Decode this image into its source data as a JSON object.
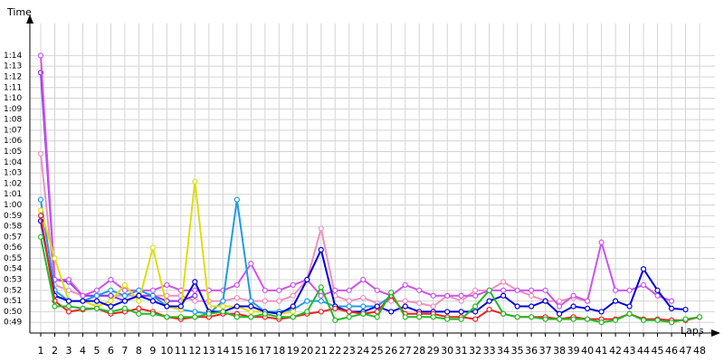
{
  "chart_data": {
    "type": "line",
    "y_label": "Time",
    "x_label": "Laps",
    "grid": true,
    "categories": [
      "1",
      "2",
      "3",
      "4",
      "5",
      "6",
      "7",
      "8",
      "9",
      "10",
      "11",
      "12",
      "13",
      "14",
      "15",
      "16",
      "17",
      "18",
      "19",
      "20",
      "21",
      "22",
      "23",
      "24",
      "25",
      "26",
      "27",
      "28",
      "29",
      "30",
      "31",
      "32",
      "33",
      "34",
      "35",
      "36",
      "37",
      "38",
      "39",
      "40",
      "41",
      "42",
      "43",
      "44",
      "45",
      "46",
      "47",
      "48"
    ],
    "ylim": [
      48,
      77
    ],
    "yticks": [
      {
        "value": 49,
        "label": "0:49"
      },
      {
        "value": 50,
        "label": "0:50"
      },
      {
        "value": 51,
        "label": "0:51"
      },
      {
        "value": 52,
        "label": "0:52"
      },
      {
        "value": 53,
        "label": "0:53"
      },
      {
        "value": 54,
        "label": "0:54"
      },
      {
        "value": 55,
        "label": "0:55"
      },
      {
        "value": 56,
        "label": "0:56"
      },
      {
        "value": 57,
        "label": "0:57"
      },
      {
        "value": 58,
        "label": "0:58"
      },
      {
        "value": 59,
        "label": "0:59"
      },
      {
        "value": 60,
        "label": "1:00"
      },
      {
        "value": 61,
        "label": "1:01"
      },
      {
        "value": 62,
        "label": "1:02"
      },
      {
        "value": 63,
        "label": "1:03"
      },
      {
        "value": 64,
        "label": "1:04"
      },
      {
        "value": 65,
        "label": "1:05"
      },
      {
        "value": 66,
        "label": "1:06"
      },
      {
        "value": 67,
        "label": "1:07"
      },
      {
        "value": 68,
        "label": "1:08"
      },
      {
        "value": 69,
        "label": "1:09"
      },
      {
        "value": 70,
        "label": "1:10"
      },
      {
        "value": 71,
        "label": "1:11"
      },
      {
        "value": 72,
        "label": "1:12"
      },
      {
        "value": 73,
        "label": "1:13"
      },
      {
        "value": 74,
        "label": "1:14"
      }
    ],
    "series": [
      {
        "color": "#f090c0",
        "values": [
          64.8,
          52.5,
          52,
          51.5,
          51.5,
          51.5,
          51.5,
          51.5,
          51.5,
          51.5,
          51.5,
          51,
          51,
          51,
          51.3,
          51,
          51,
          51,
          51.5,
          53,
          57.8,
          51.5,
          51,
          51.3,
          50.8,
          51,
          51,
          50.8,
          50.5,
          51.5,
          51,
          52,
          52,
          52.8,
          52,
          51.5,
          51,
          51,
          51.3,
          51,
          null,
          null,
          null,
          null,
          null,
          null,
          null,
          null
        ]
      },
      {
        "color": "#8833ee",
        "values": [
          72.4,
          53,
          52.8,
          51.5,
          51.5,
          51.5,
          51,
          51.5,
          51.5,
          51,
          51,
          51.5,
          null,
          null,
          null,
          null,
          null,
          null,
          null,
          null,
          null,
          null,
          null,
          null,
          null,
          null,
          null,
          null,
          null,
          null,
          null,
          null,
          null,
          null,
          null,
          null,
          null,
          null,
          null,
          null,
          null,
          null,
          null,
          null,
          null,
          null,
          null,
          null
        ]
      },
      {
        "color": "#cc55ee",
        "values": [
          74,
          53,
          53,
          51.5,
          52,
          53,
          52,
          52,
          52,
          52.5,
          52,
          52,
          52,
          52,
          52.5,
          54.5,
          52,
          52,
          52.5,
          53,
          51.5,
          52,
          52,
          53,
          52,
          51.5,
          52.5,
          52,
          51.5,
          51.5,
          51.5,
          51.5,
          52,
          52,
          52,
          52,
          52,
          50.5,
          51.5,
          51,
          56.5,
          52,
          52,
          52.5,
          51.5,
          51,
          null,
          null
        ]
      },
      {
        "color": "#1e9be8",
        "values": [
          60.5,
          52,
          51,
          51,
          51.5,
          52,
          51.5,
          52,
          51.5,
          50.5,
          50.2,
          50,
          49.8,
          51,
          60.5,
          51,
          50,
          50,
          50.2,
          51,
          51,
          50.5,
          50.5,
          50.5,
          50.5,
          51.5,
          null,
          null,
          null,
          null,
          null,
          null,
          null,
          null,
          null,
          null,
          null,
          null,
          null,
          null,
          null,
          null,
          null,
          null,
          null,
          null,
          null,
          null
        ]
      },
      {
        "color": "#dddd11",
        "values": [
          59.5,
          55,
          51,
          51,
          50.5,
          51,
          52.5,
          51,
          56,
          50.5,
          50.2,
          62.2,
          50.5,
          50.5,
          50.5,
          50,
          50,
          49.8,
          50,
          null,
          null,
          null,
          null,
          null,
          null,
          null,
          null,
          null,
          null,
          null,
          null,
          null,
          null,
          null,
          null,
          null,
          null,
          null,
          null,
          null,
          null,
          null,
          null,
          null,
          null,
          null,
          null,
          null
        ]
      },
      {
        "color": "#0000dd",
        "values": [
          58.5,
          51.5,
          51,
          51,
          51,
          50.5,
          51,
          51.5,
          51,
          50.5,
          50.5,
          52.8,
          50,
          50,
          50.5,
          50.5,
          50,
          49.8,
          50.5,
          53,
          55.8,
          50.5,
          50,
          50,
          50.5,
          50,
          50.5,
          50,
          50,
          50,
          50,
          50,
          51,
          51.5,
          50.5,
          50.5,
          51,
          49.8,
          50.5,
          50.3,
          50,
          51,
          50.5,
          54,
          52,
          50.3,
          50.2,
          null
        ]
      },
      {
        "color": "#ee2222",
        "values": [
          59,
          51,
          50,
          50.2,
          50.3,
          49.8,
          50,
          50.3,
          50,
          49.5,
          49.3,
          49.5,
          49.5,
          49.8,
          49.8,
          49.5,
          49.5,
          49.3,
          49.5,
          49.8,
          50,
          50.3,
          50,
          49.8,
          50,
          51.5,
          49.8,
          49.8,
          49.8,
          49.5,
          49.5,
          49.3,
          50.2,
          49.8,
          49.5,
          49.5,
          49.5,
          49.3,
          49.5,
          49.3,
          49.3,
          49.3,
          49.8,
          49.3,
          49.3,
          49.2,
          49.2,
          49.5
        ]
      },
      {
        "color": "#22bb22",
        "values": [
          57,
          50.5,
          50.5,
          50.3,
          50.3,
          50,
          50.3,
          49.8,
          49.8,
          49.5,
          49.5,
          49.5,
          49.8,
          50,
          49.5,
          49.5,
          49.8,
          49.5,
          49.5,
          50,
          52.3,
          49.2,
          49.5,
          49.8,
          49.5,
          51.8,
          49.5,
          49.5,
          49.5,
          49.3,
          49.3,
          50.5,
          52,
          49.8,
          49.5,
          49.5,
          49.3,
          49.3,
          49.3,
          49.3,
          49,
          49.2,
          49.8,
          49.2,
          49.2,
          49,
          49.3,
          49.5
        ]
      }
    ]
  }
}
